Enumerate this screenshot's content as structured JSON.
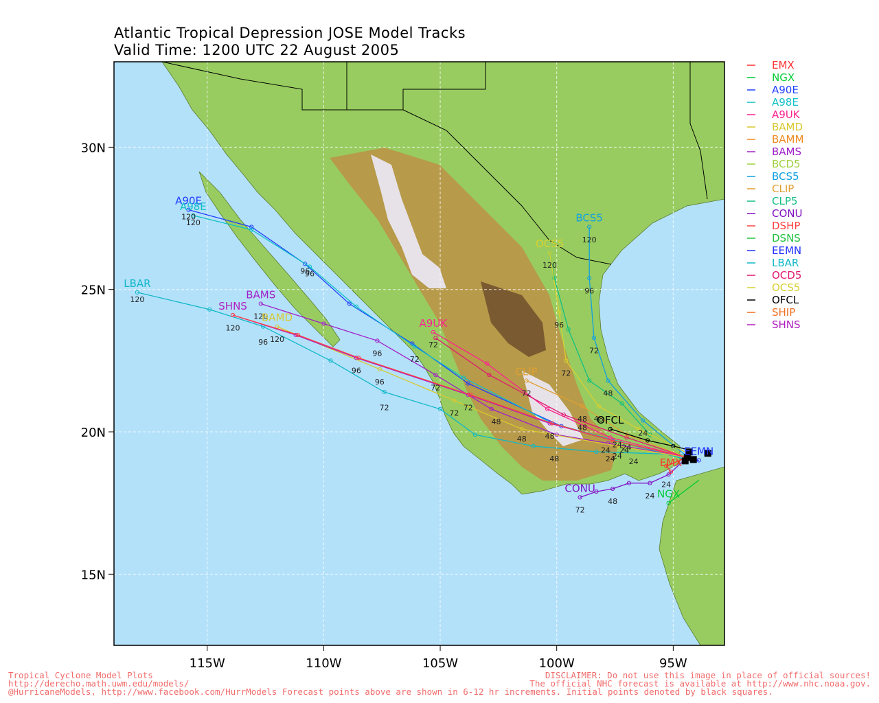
{
  "title_line1": "Atlantic Tropical Depression JOSE Model Tracks",
  "title_line2": "Valid Time: 1200 UTC 22 August 2005",
  "map": {
    "lon_range": [
      -119,
      -92.8
    ],
    "lat_range": [
      12.5,
      33
    ],
    "lat_labels": [
      "30N",
      "25N",
      "20N",
      "15N"
    ],
    "lat_values": [
      30,
      25,
      20,
      15
    ],
    "lon_labels": [
      "115W",
      "110W",
      "105W",
      "100W",
      "95W"
    ],
    "lon_values": [
      -115,
      -110,
      -105,
      -100,
      -95
    ],
    "ocean_color": "#b4e1fa",
    "grid": true
  },
  "legend": [
    {
      "name": "EMX",
      "color": "#ff3030"
    },
    {
      "name": "NGX",
      "color": "#00cc33"
    },
    {
      "name": "A90E",
      "color": "#2040ff"
    },
    {
      "name": "A98E",
      "color": "#10c0c8"
    },
    {
      "name": "A9UK",
      "color": "#ff2090"
    },
    {
      "name": "BAMD",
      "color": "#d8c830"
    },
    {
      "name": "BAMM",
      "color": "#f08a20"
    },
    {
      "name": "BAMS",
      "color": "#a020c8"
    },
    {
      "name": "BCD5",
      "color": "#a0d040"
    },
    {
      "name": "BCS5",
      "color": "#10a0e0"
    },
    {
      "name": "CLIP",
      "color": "#e0a030"
    },
    {
      "name": "CLP5",
      "color": "#10c080"
    },
    {
      "name": "CONU",
      "color": "#8010c0"
    },
    {
      "name": "DSHP",
      "color": "#ff4040"
    },
    {
      "name": "DSNS",
      "color": "#20c040"
    },
    {
      "name": "EEMN",
      "color": "#2030ff"
    },
    {
      "name": "LBAR",
      "color": "#10b8c8"
    },
    {
      "name": "OCD5",
      "color": "#e01870"
    },
    {
      "name": "OCS5",
      "color": "#d8d030"
    },
    {
      "name": "OFCL",
      "color": "#000000"
    },
    {
      "name": "SHIP",
      "color": "#f07020"
    },
    {
      "name": "SHNS",
      "color": "#b020c0"
    }
  ],
  "chart_data": {
    "type": "line",
    "x_label": "longitude",
    "y_label": "latitude",
    "start_point": {
      "lon": -94.4,
      "lat": 19.1
    },
    "series": [
      {
        "name": "A90E",
        "label": "A90E",
        "points": [
          [
            -94.3,
            19.0
          ],
          [
            -99.8,
            20.2
          ],
          [
            -103.8,
            21.7
          ],
          [
            -106.2,
            23.1
          ],
          [
            -108.9,
            24.5
          ],
          [
            -110.8,
            25.9
          ],
          [
            -113.1,
            27.2
          ],
          [
            -115.8,
            27.8
          ]
        ],
        "hours": [
          [
            -110.8,
            25.9,
            "96"
          ],
          [
            -115.8,
            27.8,
            "120"
          ]
        ]
      },
      {
        "name": "A98E",
        "label": "A98E",
        "points": [
          [
            -94.3,
            19.0
          ],
          [
            -100.2,
            20.3
          ],
          [
            -104.0,
            21.9
          ],
          [
            -106.1,
            23.0
          ],
          [
            -108.6,
            24.4
          ],
          [
            -110.6,
            25.8
          ],
          [
            -113.1,
            27.1
          ],
          [
            -115.6,
            27.6
          ]
        ],
        "hours": [
          [
            -106.1,
            22.8,
            "72"
          ],
          [
            -110.6,
            25.8,
            "96"
          ],
          [
            -115.6,
            27.6,
            "120"
          ]
        ]
      },
      {
        "name": "LBAR",
        "label": "LBAR",
        "points": [
          [
            -94.6,
            19.2
          ],
          [
            -98.3,
            19.3
          ],
          [
            -101.0,
            19.5
          ],
          [
            -103.5,
            19.9
          ],
          [
            -105.0,
            20.8
          ],
          [
            -107.4,
            21.4
          ],
          [
            -109.7,
            22.5
          ],
          [
            -112.6,
            23.7
          ],
          [
            -114.9,
            24.3
          ],
          [
            -118.0,
            24.9
          ]
        ],
        "hours": [
          [
            -97.7,
            19.3,
            "24"
          ],
          [
            -100.1,
            19.3,
            "48"
          ],
          [
            -107.4,
            21.1,
            "72"
          ],
          [
            -112.6,
            23.4,
            "96"
          ],
          [
            -118.0,
            24.9,
            "120"
          ]
        ]
      },
      {
        "name": "BAMS",
        "label": "BAMS",
        "points": [
          [
            -94.4,
            19.1
          ],
          [
            -97.8,
            19.6
          ],
          [
            -100.0,
            19.9
          ],
          [
            -102.8,
            20.8
          ],
          [
            -105.2,
            22.0
          ],
          [
            -107.7,
            23.2
          ],
          [
            -110.0,
            23.8
          ],
          [
            -112.7,
            24.5
          ]
        ],
        "hours": [
          [
            -97.9,
            19.6,
            "24"
          ],
          [
            -102.6,
            20.6,
            "48"
          ],
          [
            -105.2,
            21.8,
            "72"
          ],
          [
            -107.7,
            23.0,
            "96"
          ],
          [
            -112.7,
            24.3,
            "120"
          ]
        ]
      },
      {
        "name": "BAMD",
        "label": "BAMD",
        "points": [
          [
            -94.4,
            19.1
          ],
          [
            -97.4,
            19.5
          ],
          [
            -101.5,
            20.1
          ],
          [
            -104.4,
            21.1
          ],
          [
            -107.6,
            22.2
          ],
          [
            -112.0,
            23.7
          ]
        ],
        "hours": [
          [
            -97.4,
            19.4,
            "24"
          ],
          [
            -101.5,
            20.0,
            "48"
          ],
          [
            -104.4,
            20.9,
            "72"
          ],
          [
            -107.6,
            22.0,
            "96"
          ],
          [
            -112.0,
            23.5,
            "120"
          ]
        ]
      },
      {
        "name": "SHNS",
        "label": "SHNS",
        "points": [
          [
            -94.4,
            19.1
          ],
          [
            -97.6,
            19.7
          ],
          [
            -100.3,
            20.3
          ],
          [
            -103.8,
            21.3
          ],
          [
            -108.6,
            22.6
          ],
          [
            -111.2,
            23.4
          ],
          [
            -113.9,
            24.1
          ]
        ],
        "hours": [
          [
            -97.4,
            19.8,
            "24"
          ],
          [
            -100.3,
            20.1,
            "48"
          ],
          [
            -103.8,
            21.1,
            "72"
          ],
          [
            -108.6,
            22.4,
            "96"
          ],
          [
            -113.9,
            23.9,
            "120"
          ]
        ]
      },
      {
        "name": "DSHP",
        "label": "",
        "points": [
          [
            -94.4,
            19.1
          ],
          [
            -97.6,
            19.7
          ],
          [
            -100.2,
            20.3
          ],
          [
            -103.7,
            21.3
          ],
          [
            -108.5,
            22.6
          ],
          [
            -111.1,
            23.4
          ],
          [
            -113.9,
            24.1
          ]
        ],
        "hours": []
      },
      {
        "name": "A9UK",
        "label": "A9UK",
        "points": [
          [
            -94.4,
            19.1
          ],
          [
            -97.7,
            19.8
          ],
          [
            -100.4,
            20.8
          ],
          [
            -103.0,
            22.4
          ],
          [
            -105.3,
            23.5
          ]
        ],
        "hours": [
          [
            -98.9,
            20.4,
            "48"
          ],
          [
            -105.3,
            23.3,
            "72"
          ]
        ]
      },
      {
        "name": "OCD5",
        "label": "",
        "points": [
          [
            -94.4,
            19.1
          ],
          [
            -97.0,
            19.8
          ],
          [
            -99.7,
            20.6
          ],
          [
            -102.9,
            22.0
          ],
          [
            -105.2,
            23.3
          ]
        ],
        "hours": []
      },
      {
        "name": "CLIP",
        "label": "CLIP",
        "points": [
          [
            -94.4,
            19.1
          ],
          [
            -97.0,
            19.9
          ],
          [
            -98.9,
            20.9
          ],
          [
            -101.3,
            21.8
          ]
        ],
        "hours": [
          [
            -97.0,
            19.7,
            "24"
          ],
          [
            -98.9,
            20.7,
            "48"
          ],
          [
            -101.3,
            21.6,
            "72"
          ]
        ]
      },
      {
        "name": "BCS5",
        "label": "BCS5",
        "points": [
          [
            -94.5,
            19.2
          ],
          [
            -96.3,
            20.4
          ],
          [
            -97.8,
            21.8
          ],
          [
            -98.4,
            23.3
          ],
          [
            -98.6,
            25.4
          ],
          [
            -98.6,
            27.2
          ]
        ],
        "hours": [
          [
            -96.3,
            20.2,
            "24"
          ],
          [
            -97.8,
            21.6,
            "48"
          ],
          [
            -98.4,
            23.1,
            "72"
          ],
          [
            -98.6,
            25.2,
            "96"
          ],
          [
            -98.6,
            27.0,
            "120"
          ]
        ]
      },
      {
        "name": "CLP5",
        "label": "",
        "points": [
          [
            -94.5,
            19.3
          ],
          [
            -96.0,
            19.9
          ],
          [
            -97.2,
            21.0
          ],
          [
            -98.6,
            21.8
          ],
          [
            -99.5,
            23.6
          ],
          [
            -100.1,
            25.4
          ],
          [
            -100.3,
            26.3
          ]
        ],
        "hours": []
      },
      {
        "name": "OCS5",
        "label": "OCS5",
        "points": [
          [
            -94.5,
            19.3
          ],
          [
            -96.5,
            20.1
          ],
          [
            -98.2,
            20.9
          ],
          [
            -99.6,
            22.5
          ],
          [
            -99.9,
            24.2
          ],
          [
            -100.3,
            26.3
          ]
        ],
        "hours": [
          [
            -98.2,
            20.7,
            "48"
          ],
          [
            -99.6,
            22.3,
            "72"
          ],
          [
            -99.9,
            24.0,
            "96"
          ],
          [
            -100.3,
            26.1,
            "120"
          ]
        ]
      },
      {
        "name": "OFCL",
        "label": "OFCL",
        "points": [
          [
            -94.5,
            19.4
          ],
          [
            -95.0,
            19.5
          ],
          [
            -96.1,
            19.7
          ],
          [
            -97.7,
            20.1
          ]
        ],
        "hours": [
          [
            -97.1,
            19.6,
            "24"
          ],
          [
            -96.7,
            19.2,
            "24"
          ]
        ]
      },
      {
        "name": "CONU",
        "label": "CONU",
        "points": [
          [
            -94.4,
            19.1
          ],
          [
            -95.2,
            18.5
          ],
          [
            -96.0,
            18.2
          ],
          [
            -96.9,
            18.2
          ],
          [
            -97.6,
            18.0
          ],
          [
            -98.3,
            17.9
          ],
          [
            -99.0,
            17.7
          ]
        ],
        "hours": [
          [
            -95.3,
            18.4,
            "24"
          ],
          [
            -96.0,
            18.0,
            "24"
          ],
          [
            -97.6,
            17.8,
            "48"
          ],
          [
            -99.0,
            17.5,
            "72"
          ]
        ]
      },
      {
        "name": "EMX",
        "label": "EMX",
        "points": [
          [
            -94.4,
            19.1
          ],
          [
            -95.3,
            18.8
          ],
          [
            -95.1,
            18.6
          ]
        ],
        "hours": []
      },
      {
        "name": "NGX",
        "label": "NGX",
        "points": [
          [
            -93.9,
            18.3
          ],
          [
            -95.2,
            17.5
          ]
        ],
        "hours": []
      },
      {
        "name": "EEMN",
        "label": "EEMN",
        "points": [
          [
            -94.3,
            19.0
          ],
          [
            -93.9,
            19.0
          ]
        ],
        "hours": []
      }
    ]
  },
  "footer_left": [
    "Tropical Cyclone Model Plots",
    "http://derecho.math.uwm.edu/models/",
    "@HurricaneModels, http://www.facebook.com/HurrModels  Forecast points above are shown in 6-12 hr increments. Initial points denoted by black squares."
  ],
  "footer_right": [
    "DISCLAIMER: Do not use this image in place of official sources!",
    "The official NHC forecast is available at http://www.nhc.noaa.gov."
  ]
}
